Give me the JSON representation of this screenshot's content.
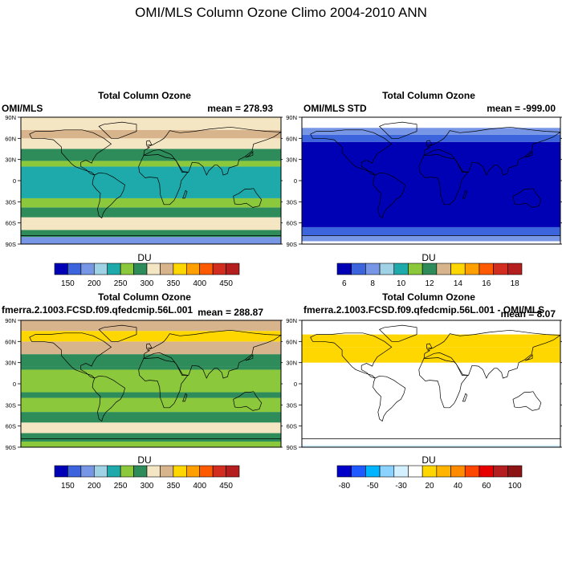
{
  "figure": {
    "title": "OMI/MLS Column Ozone Climo 2004-2010 ANN"
  },
  "chart_data": [
    {
      "type": "heatmap",
      "title": "Total Column Ozone",
      "left_label": "OMI/MLS",
      "right_label": "mean = 278.93",
      "yticks": [
        "90N",
        "60N",
        "30N",
        "0",
        "30S",
        "60S",
        "90S"
      ],
      "ylim": [
        -90,
        90
      ],
      "colorbar": {
        "label": "DU",
        "colors": [
          "#0000b4",
          "#3c64dc",
          "#7896e6",
          "#a0d2e6",
          "#1eaaaa",
          "#8cc83c",
          "#2d8c5a",
          "#f5e6c3",
          "#d7b48c",
          "#ffd700",
          "#ffa000",
          "#ff5a00",
          "#d22d1e",
          "#b41e1e"
        ],
        "tick_labels": [
          "150",
          "200",
          "250",
          "300",
          "350",
          "400",
          "450"
        ]
      },
      "bands": [
        {
          "lat": [
            -90,
            -80
          ],
          "level": 2
        },
        {
          "lat": [
            -80,
            -70
          ],
          "level": 6
        },
        {
          "lat": [
            -70,
            -62
          ],
          "level": 7
        },
        {
          "lat": [
            -62,
            -52
          ],
          "level": 7
        },
        {
          "lat": [
            -52,
            -38
          ],
          "level": 6
        },
        {
          "lat": [
            -38,
            -25
          ],
          "level": 5
        },
        {
          "lat": [
            -25,
            20
          ],
          "level": 4
        },
        {
          "lat": [
            20,
            28
          ],
          "level": 5
        },
        {
          "lat": [
            28,
            45
          ],
          "level": 6
        },
        {
          "lat": [
            45,
            60
          ],
          "level": 7
        },
        {
          "lat": [
            60,
            72
          ],
          "level": 8
        },
        {
          "lat": [
            72,
            85
          ],
          "level": 7
        },
        {
          "lat": [
            85,
            90
          ],
          "level": 7
        }
      ]
    },
    {
      "type": "heatmap",
      "title": "Total Column Ozone",
      "left_label": "OMI/MLS STD",
      "right_label": "mean = -999.00",
      "yticks": [
        "90N",
        "60N",
        "30N",
        "0",
        "30S",
        "60S",
        "90S"
      ],
      "ylim": [
        -90,
        90
      ],
      "colorbar": {
        "label": "DU",
        "colors": [
          "#0000b4",
          "#3c64dc",
          "#7896e6",
          "#a0d2e6",
          "#1eaaaa",
          "#8cc83c",
          "#2d8c5a",
          "#d7b48c",
          "#ffd700",
          "#ffa000",
          "#ff5a00",
          "#d22d1e",
          "#b41e1e"
        ],
        "tick_labels": [
          "6",
          "8",
          "10",
          "12",
          "14",
          "16",
          "18"
        ]
      },
      "bands": [
        {
          "lat": [
            -90,
            -86
          ],
          "level": -1
        },
        {
          "lat": [
            -86,
            -78
          ],
          "level": 2
        },
        {
          "lat": [
            -78,
            -66
          ],
          "level": 1
        },
        {
          "lat": [
            -66,
            55
          ],
          "level": 0
        },
        {
          "lat": [
            55,
            65
          ],
          "level": 1
        },
        {
          "lat": [
            65,
            75
          ],
          "level": 2
        },
        {
          "lat": [
            75,
            90
          ],
          "level": -1
        }
      ]
    },
    {
      "type": "heatmap",
      "title": "Total Column Ozone",
      "left_label": "fmerra.2.1003.FCSD.f09.qfedcmip.56L.001",
      "right_label": "mean = 288.87",
      "yticks": [
        "90N",
        "60N",
        "30N",
        "0",
        "30S",
        "60S",
        "90S"
      ],
      "ylim": [
        -90,
        90
      ],
      "colorbar": {
        "label": "DU",
        "colors": [
          "#0000b4",
          "#3c64dc",
          "#7896e6",
          "#a0d2e6",
          "#1eaaaa",
          "#8cc83c",
          "#2d8c5a",
          "#f5e6c3",
          "#d7b48c",
          "#ffd700",
          "#ffa000",
          "#ff5a00",
          "#d22d1e",
          "#b41e1e"
        ],
        "tick_labels": [
          "150",
          "200",
          "250",
          "300",
          "350",
          "400",
          "450"
        ]
      },
      "bands": [
        {
          "lat": [
            -90,
            -82
          ],
          "level": 5
        },
        {
          "lat": [
            -82,
            -70
          ],
          "level": 6
        },
        {
          "lat": [
            -70,
            -55
          ],
          "level": 7
        },
        {
          "lat": [
            -55,
            -40
          ],
          "level": 6
        },
        {
          "lat": [
            -40,
            -20
          ],
          "level": 5
        },
        {
          "lat": [
            -20,
            -12
          ],
          "level": 6
        },
        {
          "lat": [
            -12,
            20
          ],
          "level": 5
        },
        {
          "lat": [
            20,
            25
          ],
          "level": 6
        },
        {
          "lat": [
            25,
            42
          ],
          "level": 6
        },
        {
          "lat": [
            42,
            60
          ],
          "level": 8
        },
        {
          "lat": [
            60,
            75
          ],
          "level": 9
        },
        {
          "lat": [
            75,
            90
          ],
          "level": 8
        }
      ]
    },
    {
      "type": "heatmap",
      "title": "Total Column Ozone",
      "left_label": "fmerra.2.1003.FCSD.f09.qfedcmip.56L.001 - OMI/MLS",
      "right_label": "mean = 8.07",
      "yticks": [
        "90N",
        "60N",
        "30N",
        "0",
        "30S",
        "60S",
        "90S"
      ],
      "ylim": [
        -90,
        90
      ],
      "colorbar": {
        "label": "DU",
        "colors": [
          "#0000c8",
          "#1e5aff",
          "#00b4ff",
          "#8cd2ff",
          "#d2f0ff",
          "#ffffff",
          "#ffd700",
          "#ffb400",
          "#ff8c00",
          "#ff4600",
          "#e60000",
          "#b41e1e",
          "#8c1414"
        ],
        "tick_labels": [
          "-80",
          "-50",
          "-30",
          "20",
          "40",
          "60",
          "100"
        ]
      },
      "bands": [
        {
          "lat": [
            -90,
            -87
          ],
          "level": 4
        },
        {
          "lat": [
            -87,
            20
          ],
          "level": 5
        },
        {
          "lat": [
            20,
            30
          ],
          "level": 5
        },
        {
          "lat": [
            30,
            52
          ],
          "level": 6
        },
        {
          "lat": [
            52,
            70
          ],
          "level": 6
        },
        {
          "lat": [
            70,
            80
          ],
          "level": 5
        },
        {
          "lat": [
            80,
            90
          ],
          "level": 5
        }
      ]
    }
  ]
}
